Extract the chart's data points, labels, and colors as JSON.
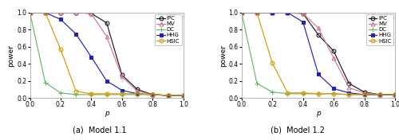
{
  "p": [
    0.0,
    0.1,
    0.2,
    0.3,
    0.4,
    0.5,
    0.6,
    0.7,
    0.8,
    0.9,
    1.0
  ],
  "model1": {
    "IPC": [
      1.0,
      1.0,
      1.0,
      1.0,
      0.99,
      0.88,
      0.27,
      0.1,
      0.04,
      0.03,
      0.03
    ],
    "MV": [
      1.0,
      1.0,
      1.0,
      1.0,
      0.99,
      0.72,
      0.25,
      0.08,
      0.04,
      0.03,
      0.03
    ],
    "DC": [
      1.0,
      0.18,
      0.06,
      0.04,
      0.04,
      0.04,
      0.04,
      0.04,
      0.04,
      0.03,
      0.03
    ],
    "HHG": [
      1.0,
      1.0,
      0.92,
      0.75,
      0.48,
      0.2,
      0.09,
      0.05,
      0.04,
      0.03,
      0.03
    ],
    "HSIC": [
      1.0,
      1.0,
      0.57,
      0.08,
      0.05,
      0.05,
      0.05,
      0.05,
      0.04,
      0.03,
      0.03
    ]
  },
  "model2": {
    "IPC": [
      1.0,
      1.0,
      1.0,
      1.0,
      0.99,
      0.74,
      0.55,
      0.17,
      0.07,
      0.04,
      0.04
    ],
    "MV": [
      1.0,
      1.0,
      1.0,
      1.0,
      0.99,
      0.82,
      0.47,
      0.12,
      0.06,
      0.04,
      0.04
    ],
    "DC": [
      1.0,
      0.17,
      0.07,
      0.05,
      0.05,
      0.05,
      0.05,
      0.04,
      0.04,
      0.04,
      0.04
    ],
    "HHG": [
      1.0,
      1.0,
      1.0,
      1.0,
      0.89,
      0.28,
      0.11,
      0.06,
      0.04,
      0.04,
      0.04
    ],
    "HSIC": [
      1.0,
      1.0,
      0.41,
      0.06,
      0.06,
      0.05,
      0.05,
      0.04,
      0.04,
      0.04,
      0.04
    ]
  },
  "colors": {
    "IPC": "#1a1a1a",
    "MV": "#cc7799",
    "DC": "#66bb66",
    "HHG": "#2222bb",
    "HSIC": "#dd9900"
  },
  "markers": {
    "IPC": "o",
    "MV": "^",
    "DC": "+",
    "HHG": "s",
    "HSIC": "o"
  },
  "xlabel": "p",
  "ylabel": "power",
  "xlim": [
    0.0,
    1.0
  ],
  "ylim": [
    0.0,
    1.0
  ],
  "title_a": "(a)  Model 1.1",
  "title_b": "(b)  Model 1.2",
  "legend_labels": [
    "IPC",
    "MV",
    "DC",
    "HHG",
    "HSIC"
  ],
  "bg_color": "#ffffff",
  "axes_bg_color": "#ffffff"
}
